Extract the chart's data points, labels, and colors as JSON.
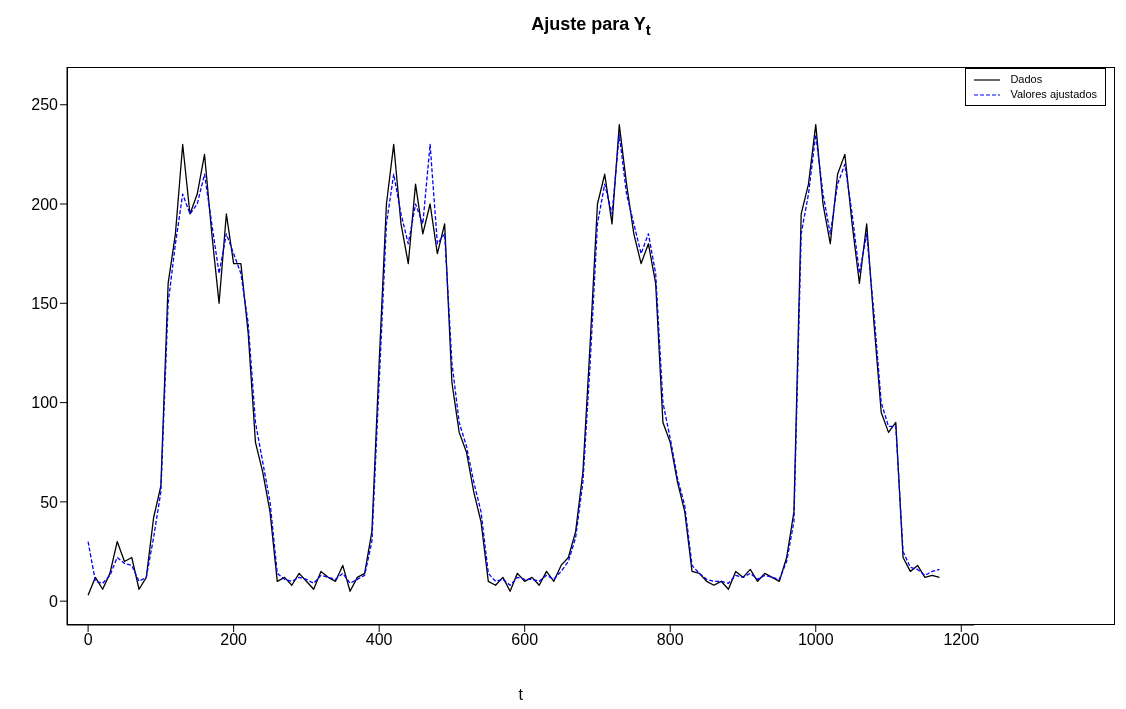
{
  "chart_data": {
    "type": "line",
    "title": "Ajuste para Y$_{t}$",
    "xlabel": "t",
    "x": [
      0,
      10,
      20,
      30,
      40,
      50,
      60,
      70,
      80,
      90,
      100,
      110,
      120,
      130,
      140,
      150,
      160,
      170,
      180,
      190,
      200,
      210,
      220,
      230,
      240,
      250,
      260,
      270,
      280,
      290,
      300,
      310,
      320,
      330,
      340,
      350,
      360,
      370,
      380,
      390,
      400,
      410,
      420,
      430,
      440,
      450,
      460,
      470,
      480,
      490,
      500,
      510,
      520,
      530,
      540,
      550,
      560,
      570,
      580,
      590,
      600,
      610,
      620,
      630,
      640,
      650,
      660,
      670,
      680,
      690,
      700,
      710,
      720,
      730,
      740,
      750,
      760,
      770,
      780,
      790,
      800,
      810,
      820,
      830,
      840,
      850,
      860,
      870,
      880,
      890,
      900,
      910,
      920,
      930,
      940,
      950,
      960,
      970,
      980,
      990,
      1000,
      1010,
      1020,
      1030,
      1040,
      1050,
      1060,
      1070,
      1080,
      1090,
      1100,
      1110,
      1120,
      1130,
      1140,
      1150,
      1160,
      1170
    ],
    "series": [
      {
        "name": "Dados",
        "color": "#000000",
        "line_style": "solid",
        "values": [
          3,
          12,
          6,
          14,
          30,
          20,
          22,
          6,
          12,
          42,
          58,
          160,
          185,
          230,
          195,
          205,
          225,
          185,
          150,
          195,
          170,
          170,
          135,
          80,
          65,
          45,
          10,
          12,
          8,
          14,
          10,
          6,
          15,
          12,
          10,
          18,
          5,
          12,
          14,
          35,
          120,
          200,
          230,
          190,
          170,
          210,
          185,
          200,
          175,
          190,
          110,
          85,
          75,
          55,
          40,
          10,
          8,
          12,
          5,
          14,
          10,
          12,
          8,
          15,
          10,
          18,
          22,
          35,
          65,
          130,
          200,
          215,
          190,
          240,
          210,
          185,
          170,
          180,
          160,
          90,
          80,
          60,
          45,
          15,
          14,
          10,
          8,
          10,
          6,
          15,
          12,
          16,
          10,
          14,
          12,
          10,
          22,
          45,
          195,
          210,
          240,
          200,
          180,
          215,
          225,
          190,
          160,
          190,
          140,
          95,
          85,
          90,
          22,
          15,
          18,
          12,
          13,
          12
        ]
      },
      {
        "name": "Valores ajustados",
        "color": "#0000ff",
        "line_style": "dashed",
        "values": [
          30,
          10,
          9,
          13,
          22,
          19,
          18,
          10,
          12,
          32,
          55,
          150,
          180,
          205,
          195,
          200,
          215,
          190,
          165,
          185,
          175,
          165,
          140,
          90,
          70,
          50,
          14,
          11,
          10,
          12,
          11,
          9,
          13,
          12,
          11,
          14,
          9,
          11,
          13,
          30,
          110,
          190,
          215,
          195,
          180,
          200,
          190,
          230,
          180,
          185,
          120,
          90,
          78,
          60,
          45,
          14,
          10,
          11,
          8,
          12,
          11,
          11,
          10,
          13,
          11,
          15,
          20,
          32,
          60,
          120,
          190,
          210,
          195,
          235,
          205,
          190,
          175,
          185,
          165,
          100,
          82,
          62,
          48,
          18,
          14,
          11,
          10,
          10,
          9,
          13,
          12,
          14,
          11,
          13,
          12,
          11,
          20,
          40,
          185,
          205,
          235,
          205,
          185,
          210,
          220,
          195,
          165,
          185,
          145,
          100,
          88,
          88,
          25,
          17,
          16,
          13,
          15,
          16
        ]
      }
    ],
    "xlim": [
      -29,
      1218
    ],
    "xticks": [
      0,
      200,
      400,
      600,
      800,
      1000,
      1200
    ],
    "ylim": [
      -12,
      269
    ],
    "yticks": [
      0,
      50,
      100,
      150,
      200,
      250
    ],
    "grid": false,
    "legend": "top right",
    "marker": "none"
  }
}
